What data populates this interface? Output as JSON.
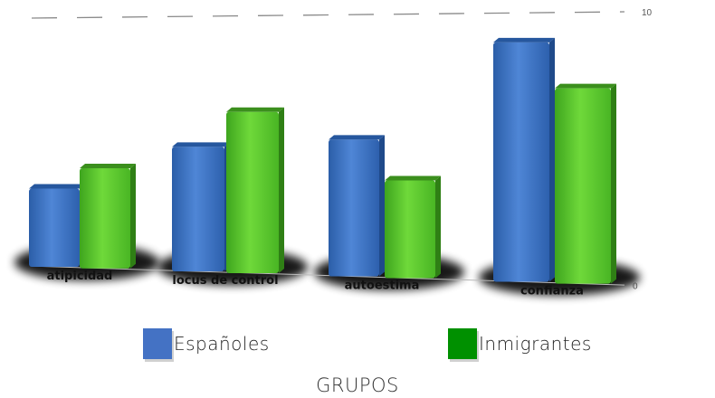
{
  "chart_data": {
    "type": "bar",
    "categories": [
      "atipicidad",
      "locus de control",
      "autoestima",
      "confianza"
    ],
    "series": [
      {
        "name": "Españoles",
        "values": [
          3.2,
          5.1,
          5.6,
          9.8
        ]
      },
      {
        "name": "Inmigrantes",
        "values": [
          4.1,
          6.6,
          4.0,
          8.0
        ]
      }
    ],
    "xlabel": "GRUPOS",
    "ylabel": "",
    "ylim": [
      0,
      10
    ],
    "yticks": [
      "0",
      "10"
    ],
    "grid": true,
    "legend_position": "bottom",
    "colors": {
      "series_0": "#3f74c8",
      "series_1": "#5fcb2e",
      "legend_0": "#4472c4",
      "legend_1": "#009000"
    }
  }
}
